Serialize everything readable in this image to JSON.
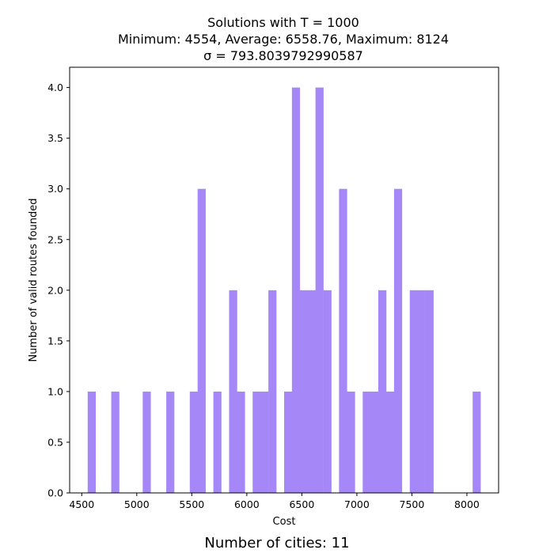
{
  "chart_data": {
    "type": "bar",
    "title_lines": [
      "Solutions with T = 1000",
      "Minimum: 4554, Average: 6558.76, Maximum: 8124",
      "σ = 793.8039792990587"
    ],
    "xlabel": "Cost",
    "ylabel": "Number of valid routes founded",
    "footer": "Number of cities: 11",
    "xlim": [
      4390,
      8288
    ],
    "ylim": [
      0,
      4.2
    ],
    "xticks": [
      4500,
      5000,
      5500,
      6000,
      6500,
      7000,
      7500,
      8000
    ],
    "yticks": [
      "0.0",
      "0.5",
      "1.0",
      "1.5",
      "2.0",
      "2.5",
      "3.0",
      "3.5",
      "4.0"
    ],
    "bar_color": "#a587f8",
    "bin_width": 71.4,
    "bins": [
      {
        "start": 4554,
        "count": 1
      },
      {
        "start": 4768,
        "count": 1
      },
      {
        "start": 5054,
        "count": 1
      },
      {
        "start": 5268,
        "count": 1
      },
      {
        "start": 5482,
        "count": 1
      },
      {
        "start": 5553,
        "count": 3
      },
      {
        "start": 5696,
        "count": 1
      },
      {
        "start": 5839,
        "count": 2
      },
      {
        "start": 5910,
        "count": 1
      },
      {
        "start": 6053,
        "count": 1
      },
      {
        "start": 6124,
        "count": 1
      },
      {
        "start": 6196,
        "count": 2
      },
      {
        "start": 6339,
        "count": 1
      },
      {
        "start": 6410,
        "count": 4
      },
      {
        "start": 6481,
        "count": 2
      },
      {
        "start": 6553,
        "count": 2
      },
      {
        "start": 6624,
        "count": 4
      },
      {
        "start": 6696,
        "count": 2
      },
      {
        "start": 6838,
        "count": 3
      },
      {
        "start": 6910,
        "count": 1
      },
      {
        "start": 7053,
        "count": 1
      },
      {
        "start": 7124,
        "count": 1
      },
      {
        "start": 7195,
        "count": 2
      },
      {
        "start": 7267,
        "count": 1
      },
      {
        "start": 7338,
        "count": 3
      },
      {
        "start": 7481,
        "count": 2
      },
      {
        "start": 7552,
        "count": 2
      },
      {
        "start": 7624,
        "count": 2
      },
      {
        "start": 8052,
        "count": 1
      }
    ]
  }
}
